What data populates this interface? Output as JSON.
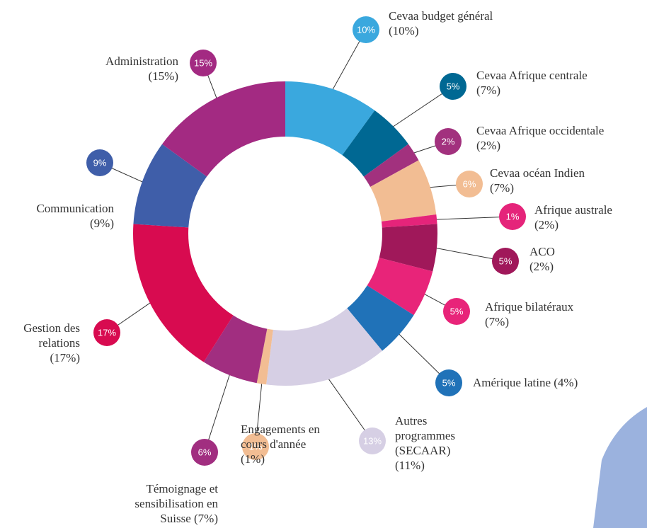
{
  "chart_data": {
    "type": "donut",
    "categories": [
      "Cevaa budget général",
      "Cevaa Afrique centrale",
      "Cevaa Afrique occidentale",
      "Cevaa océan Indien",
      "Afrique australe",
      "ACO",
      "Afrique bilatéraux",
      "Amérique latine",
      "Autres programmes (SECAAR)",
      "Engagements en cours d'année",
      "Témoignage et sensibilisation",
      "Gestion des relations",
      "Communication",
      "Administration"
    ],
    "values": [
      10,
      5,
      2,
      6,
      1,
      5,
      5,
      5,
      13,
      1,
      6,
      17,
      9,
      15
    ],
    "value_labels": [
      "10%",
      "5%",
      "2%",
      "6%",
      "1%",
      "5%",
      "5%",
      "5%",
      "13%",
      "1%",
      "6%",
      "17%",
      "9%",
      "15%"
    ],
    "label_notes": [
      "(10%)",
      "(7%)",
      "(2%)",
      "(7%)",
      "(2%)",
      "(2%)",
      "(7%)",
      "(4%)",
      "(11%)",
      "(1%)",
      "en Suisse (7%)",
      "(17%)",
      "(9%)",
      "(15%)"
    ],
    "colors": [
      "#3aa8de",
      "#006893",
      "#a2317e",
      "#f2bd93",
      "#e5247a",
      "#a0185a",
      "#e82479",
      "#2072b8",
      "#d6cfe4",
      "#f2bd93",
      "#a12e80",
      "#d80b50",
      "#3f5ea9",
      "#a32a82"
    ]
  }
}
